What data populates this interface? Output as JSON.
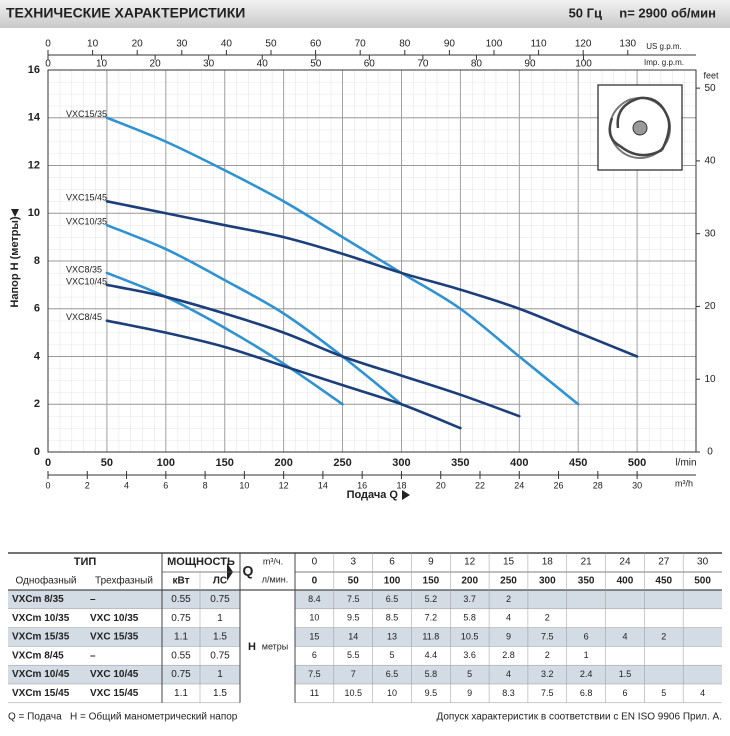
{
  "header": {
    "title": "ТЕХНИЧЕСКИЕ ХАРАКТЕРИСТИКИ",
    "freq": "50 Гц",
    "speed": "n= 2900 об/мин"
  },
  "chart_data": {
    "type": "line",
    "y_label": "Напор H (метры)",
    "x_label": "Подача Q",
    "x_unit": "l/min",
    "x": [
      50,
      100,
      150,
      200,
      250,
      300,
      350,
      400,
      450,
      500
    ],
    "series": [
      {
        "name": "VXC15/35",
        "color": "#2f92d2",
        "values": [
          14,
          13,
          11.8,
          10.5,
          9,
          7.5,
          6,
          4,
          2,
          null
        ]
      },
      {
        "name": "VXC15/45",
        "color": "#1c3f7c",
        "values": [
          10.5,
          10,
          9.5,
          9,
          8.3,
          7.5,
          6.8,
          6,
          5,
          4
        ]
      },
      {
        "name": "VXC10/35",
        "color": "#2f92d2",
        "values": [
          9.5,
          8.5,
          7.2,
          5.8,
          4,
          2,
          null,
          null,
          null,
          null
        ]
      },
      {
        "name": "VXC8/35",
        "color": "#2f92d2",
        "values": [
          7.5,
          6.5,
          5.2,
          3.7,
          2,
          null,
          null,
          null,
          null,
          null
        ]
      },
      {
        "name": "VXC10/45",
        "color": "#1c3f7c",
        "values": [
          7,
          6.5,
          5.8,
          5,
          4,
          3.2,
          2.4,
          1.5,
          null,
          null
        ]
      },
      {
        "name": "VXC8/45",
        "color": "#1c3f7c",
        "values": [
          5.5,
          5,
          4.4,
          3.6,
          2.8,
          2,
          1,
          null,
          null,
          null
        ]
      }
    ],
    "xlim": [
      0,
      550
    ],
    "xticks": [
      0,
      50,
      100,
      150,
      200,
      250,
      300,
      350,
      400,
      450,
      500
    ],
    "ylim": [
      0,
      16
    ],
    "yticks": [
      0,
      2,
      4,
      6,
      8,
      10,
      12,
      14,
      16
    ],
    "grid": true,
    "y2lim": [
      0,
      52.49
    ],
    "y2ticks": [
      0,
      10,
      20,
      30,
      40,
      50
    ],
    "y2_unit": "feet",
    "x2lim": [
      0,
      145.3
    ],
    "x2ticks": [
      0,
      10,
      20,
      30,
      40,
      50,
      60,
      70,
      80,
      90,
      100,
      110,
      120,
      130
    ],
    "x2_unit": "US g.p.m.",
    "x3lim": [
      0,
      121
    ],
    "x3ticks": [
      0,
      10,
      20,
      30,
      40,
      50,
      60,
      70,
      80,
      90,
      100
    ],
    "x3_unit": "Imp. g.p.m.",
    "x4lim": [
      0,
      33
    ],
    "x4ticks": [
      0,
      2,
      4,
      6,
      8,
      10,
      12,
      14,
      16,
      18,
      20,
      22,
      24,
      26,
      28,
      30
    ],
    "x4_unit": "m³/h"
  },
  "table": {
    "headers": {
      "type": "ТИП",
      "power": "МОЩНОСТЬ",
      "single": "Однофазный",
      "three": "Трехфазный",
      "kw": "кВт",
      "hp": "ЛС",
      "q": "Q",
      "q_m3h": "m³/ч.",
      "q_lmin": "л/мин.",
      "h": "H",
      "h_unit": "метры"
    },
    "q_m3h": [
      0,
      3,
      6,
      9,
      12,
      15,
      18,
      21,
      24,
      27,
      30
    ],
    "q_lmin": [
      0,
      50,
      100,
      150,
      200,
      250,
      300,
      350,
      400,
      450,
      500
    ],
    "rows": [
      {
        "single": "VXCm 8/35",
        "three": "–",
        "kw": 0.55,
        "hp": 0.75,
        "h": [
          8.4,
          7.5,
          6.5,
          5.2,
          3.7,
          2,
          null,
          null,
          null,
          null,
          null
        ]
      },
      {
        "single": "VXCm 10/35",
        "three": "VXC 10/35",
        "kw": 0.75,
        "hp": 1,
        "h": [
          10,
          9.5,
          8.5,
          7.2,
          5.8,
          4,
          2,
          null,
          null,
          null,
          null
        ]
      },
      {
        "single": "VXCm 15/35",
        "three": "VXC 15/35",
        "kw": 1.1,
        "hp": 1.5,
        "h": [
          15,
          14,
          13,
          11.8,
          10.5,
          9,
          7.5,
          6,
          4,
          2,
          null
        ]
      },
      {
        "single": "VXCm 8/45",
        "three": "–",
        "kw": 0.55,
        "hp": 0.75,
        "h": [
          6,
          5.5,
          5,
          4.4,
          3.6,
          2.8,
          2,
          1,
          null,
          null,
          null
        ]
      },
      {
        "single": "VXCm 10/45",
        "three": "VXC 10/45",
        "kw": 0.75,
        "hp": 1,
        "h": [
          7.5,
          7,
          6.5,
          5.8,
          5,
          4,
          3.2,
          2.4,
          1.5,
          null,
          null
        ]
      },
      {
        "single": "VXCm 15/45",
        "three": "VXC 15/45",
        "kw": 1.1,
        "hp": 1.5,
        "h": [
          11,
          10.5,
          10,
          9.5,
          9,
          8.3,
          7.5,
          6.8,
          6,
          5,
          4
        ]
      }
    ]
  },
  "footer": {
    "left": "Q = Подача   H = Общий манометрический напор",
    "right": "Допуск характеристик в соответствии с EN ISO 9906 Прил. A."
  }
}
